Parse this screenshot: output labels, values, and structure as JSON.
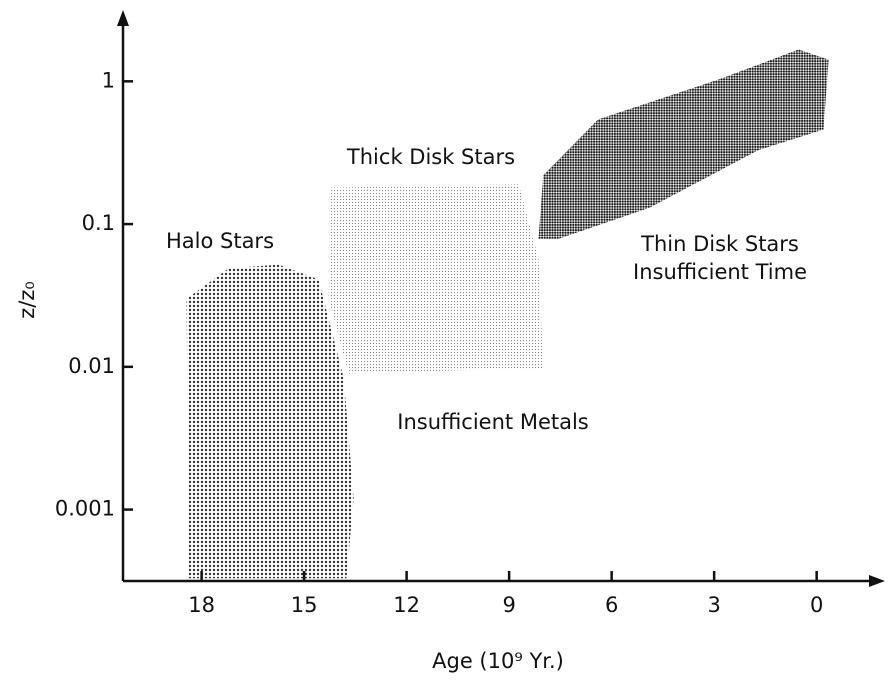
{
  "chart_data": {
    "type": "region",
    "xlabel": "Age (10⁹ Yr.)",
    "ylabel": "z/z₀",
    "xlim": [
      20.3,
      -2
    ],
    "xticks": [
      18,
      15,
      12,
      9,
      6,
      3,
      0
    ],
    "ylim": [
      0.000316,
      3.16
    ],
    "yticks": [
      1,
      0.1,
      0.01,
      0.001
    ],
    "ylog": true,
    "series": [
      {
        "name": "Halo Stars",
        "color": "#333333",
        "x": [
          18.38,
          18.44,
          17.2,
          15.75,
          14.58,
          13.84,
          13.55,
          13.76
        ],
        "y": [
          0.00033,
          0.03,
          0.049,
          0.052,
          0.041,
          0.0083,
          0.0012,
          0.00033
        ]
      },
      {
        "name": "Thick Disk Stars",
        "color": "#888888",
        "x": [
          14.22,
          8.72,
          8.14,
          8.0,
          13.7,
          14.28
        ],
        "y": [
          0.18,
          0.19,
          0.057,
          0.0098,
          0.009,
          0.03
        ]
      },
      {
        "name": "Thin Disk Stars",
        "color": "#1a1a1a",
        "x": [
          8.0,
          6.4,
          2.87,
          0.53,
          -0.35,
          -0.2,
          1.7,
          4.9,
          7.55,
          8.14
        ],
        "y": [
          0.22,
          0.54,
          1.03,
          1.67,
          1.42,
          0.46,
          0.33,
          0.13,
          0.079,
          0.079
        ]
      }
    ],
    "annotations": [
      "Insufficient Time",
      "Insufficient Metals"
    ]
  }
}
